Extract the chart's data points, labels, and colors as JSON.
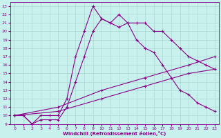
{
  "xlabel": "Windchill (Refroidissement éolien,°C)",
  "background_color": "#c8f0ec",
  "grid_color": "#b0dcd8",
  "line_color": "#880088",
  "text_color": "#880088",
  "xlim": [
    -0.5,
    23.5
  ],
  "ylim": [
    9,
    23.5
  ],
  "yticks": [
    9,
    10,
    11,
    12,
    13,
    14,
    15,
    16,
    17,
    18,
    19,
    20,
    21,
    22,
    23
  ],
  "xticks": [
    0,
    1,
    2,
    3,
    4,
    5,
    6,
    7,
    8,
    9,
    10,
    11,
    12,
    13,
    14,
    15,
    16,
    17,
    18,
    19,
    20,
    21,
    22,
    23
  ],
  "series": [
    {
      "x": [
        0,
        1,
        2,
        3,
        4,
        5,
        6,
        7,
        8,
        9,
        10,
        11,
        12,
        13,
        14,
        15,
        16,
        17,
        18,
        19,
        20,
        21,
        22,
        23
      ],
      "y": [
        10,
        10,
        9,
        10,
        10,
        10,
        12,
        17,
        20,
        23,
        21.5,
        21,
        22,
        21,
        21,
        21,
        20,
        20,
        19,
        18,
        17,
        16.5,
        16,
        15.5
      ],
      "has_markers": true
    },
    {
      "x": [
        0,
        1,
        2,
        3,
        4,
        5,
        6,
        7,
        8,
        9,
        10,
        11,
        12,
        13,
        14,
        15,
        16,
        17,
        18,
        19,
        20,
        21,
        22,
        23
      ],
      "y": [
        10,
        10,
        9,
        9.5,
        9.5,
        9.5,
        11,
        14,
        17,
        20,
        21.5,
        21,
        20.5,
        21,
        19,
        18,
        17.5,
        16,
        14.5,
        13,
        12.5,
        11.5,
        11,
        10.5
      ],
      "has_markers": true
    },
    {
      "x": [
        0,
        5,
        10,
        15,
        20,
        23
      ],
      "y": [
        10,
        11,
        13,
        14.5,
        16,
        17
      ],
      "has_markers": true
    },
    {
      "x": [
        0,
        5,
        10,
        15,
        20,
        23
      ],
      "y": [
        10,
        10.5,
        12,
        13.5,
        15,
        15.5
      ],
      "has_markers": true
    }
  ]
}
